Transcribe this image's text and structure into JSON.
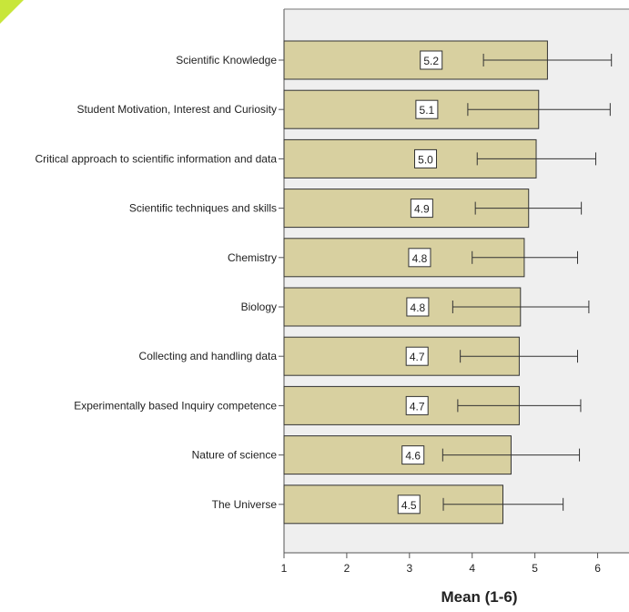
{
  "chart_data": {
    "type": "bar",
    "orientation": "horizontal",
    "xlabel": "Mean (1-6)",
    "xlim": [
      1,
      6.5
    ],
    "xticks": [
      1,
      2,
      3,
      4,
      5,
      6
    ],
    "categories": [
      "Scientific Knowledge",
      "Student Motivation, Interest and Curiosity",
      "Critical approach to scientific information and data",
      "Scientific techniques and skills",
      "Chemistry",
      "Biology",
      "Collecting and handling data",
      "Experimentally based Inquiry competence",
      "Nature of science",
      "The Universe"
    ],
    "values": [
      5.2,
      5.06,
      5.02,
      4.9,
      4.83,
      4.77,
      4.75,
      4.75,
      4.62,
      4.49
    ],
    "value_labels": [
      "5.2",
      "5.1",
      "5.0",
      "4.9",
      "4.8",
      "4.8",
      "4.7",
      "4.7",
      "4.6",
      "4.5"
    ],
    "error_low": [
      4.18,
      3.93,
      4.08,
      4.05,
      4.0,
      3.69,
      3.81,
      3.77,
      3.53,
      3.54
    ],
    "error_high": [
      6.22,
      6.2,
      5.97,
      5.74,
      5.68,
      5.86,
      5.68,
      5.73,
      5.71,
      5.45
    ],
    "colors": {
      "bar_fill": "#d8d0a0",
      "bar_stroke": "#333333",
      "plot_background": "#efefef",
      "corner_accent": "#c8e63a"
    },
    "grid": false
  }
}
